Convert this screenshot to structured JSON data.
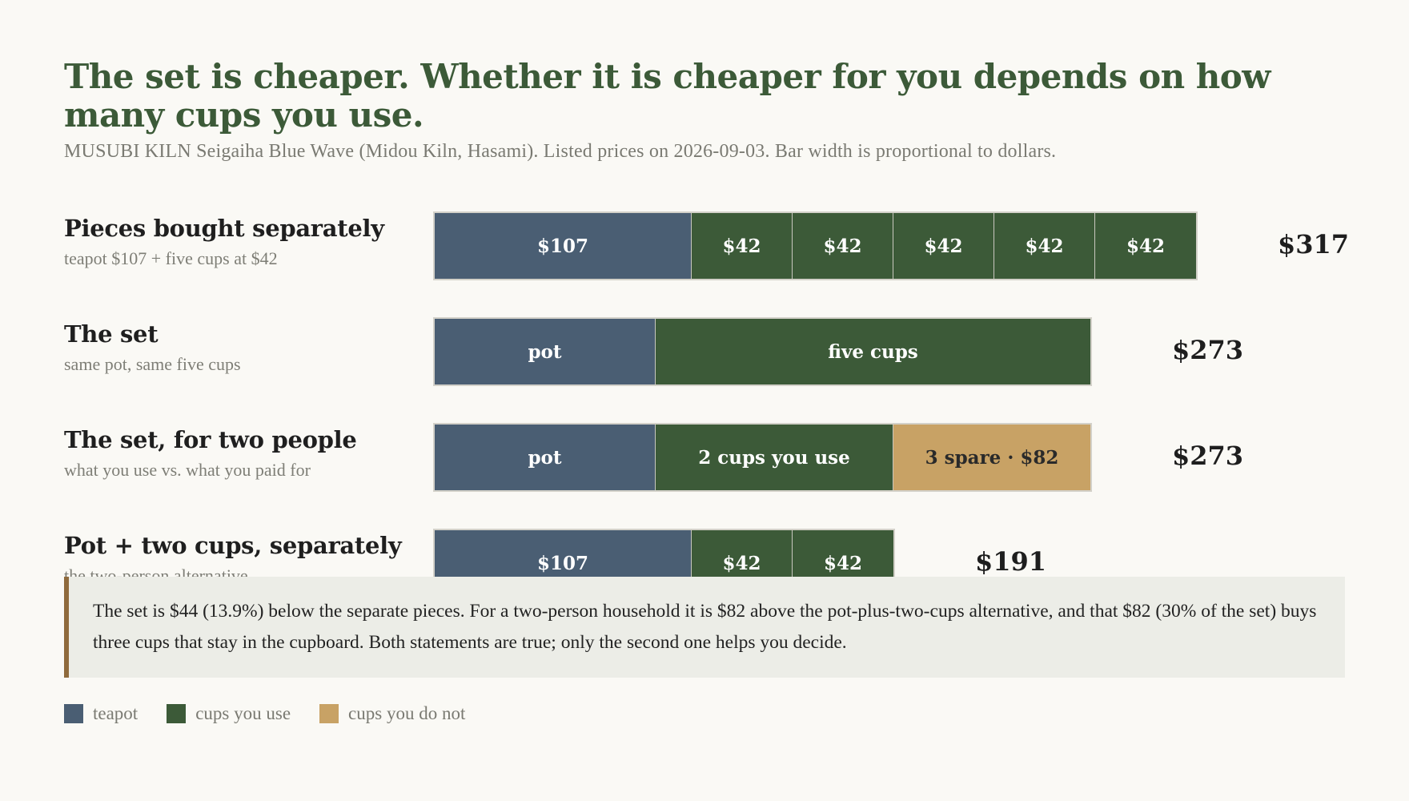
{
  "title": "The set is cheaper. Whether it is cheaper for you depends on how many cups you use.",
  "subtitle": "MUSUBI KILN Seigaiha Blue Wave (Midou Kiln, Hasami). Listed prices on 2026-09-03. Bar width is proportional to dollars.",
  "colors": {
    "teapot": "#4a5e73",
    "cups_used": "#3c5a38",
    "cups_unused": "#c8a265"
  },
  "chart_data": {
    "type": "bar",
    "orientation": "horizontal",
    "stacked": true,
    "unit": "USD",
    "rows": [
      {
        "title": "Pieces bought separately",
        "subtitle": "teapot $107 + five cups at $42",
        "total_label": "$317",
        "segments": [
          {
            "kind": "teapot",
            "value": 107,
            "label": "$107"
          },
          {
            "kind": "cups_used",
            "value": 42,
            "label": "$42"
          },
          {
            "kind": "cups_used",
            "value": 42,
            "label": "$42"
          },
          {
            "kind": "cups_used",
            "value": 42,
            "label": "$42"
          },
          {
            "kind": "cups_used",
            "value": 42,
            "label": "$42"
          },
          {
            "kind": "cups_used",
            "value": 42,
            "label": "$42"
          }
        ]
      },
      {
        "title": "The set",
        "subtitle": "same pot, same five cups",
        "total_label": "$273",
        "segments": [
          {
            "kind": "teapot",
            "value": 92,
            "label": "pot"
          },
          {
            "kind": "cups_used",
            "value": 181,
            "label": "five cups"
          }
        ]
      },
      {
        "title": "The set, for two people",
        "subtitle": "what you use vs. what you paid for",
        "total_label": "$273",
        "segments": [
          {
            "kind": "teapot",
            "value": 92,
            "label": "pot"
          },
          {
            "kind": "cups_used",
            "value": 99,
            "label": "2 cups you use"
          },
          {
            "kind": "cups_unused",
            "value": 82,
            "label": "3 spare · $82"
          }
        ]
      },
      {
        "title": "Pot + two cups, separately",
        "subtitle": "the two-person alternative",
        "total_label": "$191",
        "segments": [
          {
            "kind": "teapot",
            "value": 107,
            "label": "$107"
          },
          {
            "kind": "cups_used",
            "value": 42,
            "label": "$42"
          },
          {
            "kind": "cups_used",
            "value": 42,
            "label": "$42"
          }
        ]
      }
    ],
    "legend": [
      {
        "kind": "teapot",
        "label": "teapot"
      },
      {
        "kind": "cups_used",
        "label": "cups you use"
      },
      {
        "kind": "cups_unused",
        "label": "cups you do not"
      }
    ]
  },
  "note": "The set is $44 (13.9%) below the separate pieces. For a two-person household it is $82 above the pot-plus-two-cups alternative, and that $82 (30% of the set) buys three cups that stay in the cupboard. Both statements are true; only the second one helps you decide."
}
